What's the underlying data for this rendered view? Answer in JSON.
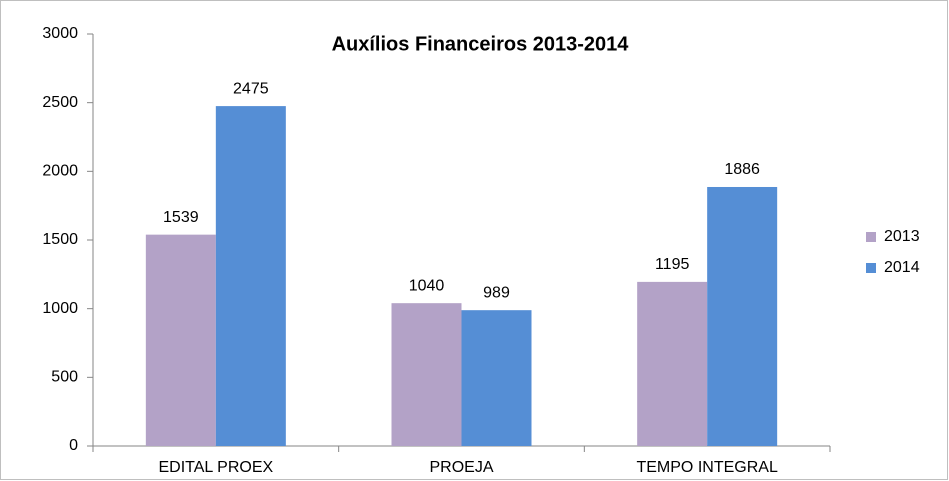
{
  "chart_data": {
    "type": "bar",
    "title": "Auxílios Financeiros 2013-2014",
    "categories": [
      "EDITAL PROEX",
      "PROEJA",
      "TEMPO INTEGRAL"
    ],
    "series": [
      {
        "name": "2013",
        "color": "#b3a2c7",
        "values": [
          1539,
          1040,
          1195
        ]
      },
      {
        "name": "2014",
        "color": "#558ed5",
        "values": [
          2475,
          989,
          1886
        ]
      }
    ],
    "ylim": [
      0,
      3000
    ],
    "yticks": [
      0,
      500,
      1000,
      1500,
      2000,
      2500,
      3000
    ],
    "grid": false,
    "legend": "right"
  }
}
